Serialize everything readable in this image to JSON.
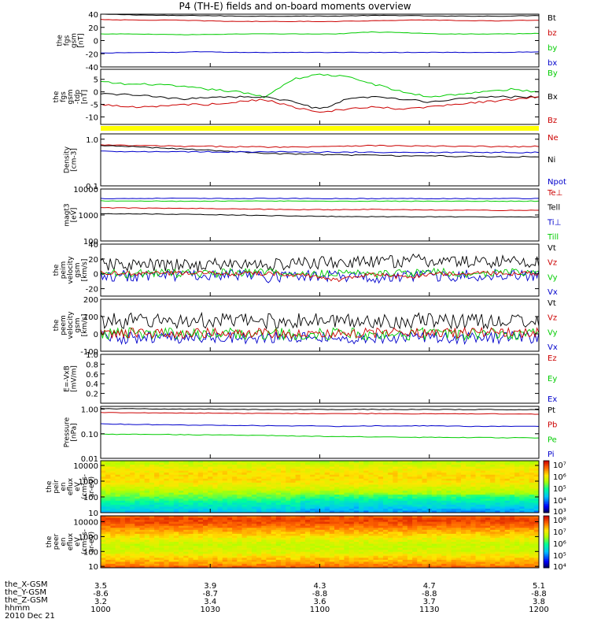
{
  "chart_data": {
    "title": "P4 (TH-E) fields and on-board moments overview",
    "footer": {
      "date": "2010 Dec 21",
      "rows": [
        {
          "label": "the_X-GSM",
          "values": [
            "3.5",
            "3.9",
            "4.3",
            "4.7",
            "5.1"
          ]
        },
        {
          "label": "the_Y-GSM",
          "values": [
            "-8.6",
            "-8.7",
            "-8.8",
            "-8.8",
            "-8.8"
          ]
        },
        {
          "label": "the_Z-GSM",
          "values": [
            "3.2",
            "3.4",
            "3.6",
            "3.7",
            "3.8"
          ]
        },
        {
          "label": "hhmm",
          "values": [
            "1000",
            "1030",
            "1100",
            "1130",
            "1200"
          ]
        }
      ]
    },
    "panels": [
      {
        "type": "line",
        "ylabel": [
          "the",
          "fgs",
          "gsm",
          "[nT]"
        ],
        "ylim": [
          -40,
          40
        ],
        "yticks": [
          "40",
          "20",
          "0",
          "-20",
          "-40"
        ],
        "legend": [
          {
            "text": "Bt",
            "color": "#000000"
          },
          {
            "text": "bz",
            "color": "#cc0000"
          },
          {
            "text": "by",
            "color": "#00cc00"
          },
          {
            "text": "bx",
            "color": "#0000cc"
          }
        ],
        "series": [
          {
            "color": "#000000",
            "values": [
              40,
              39,
              38,
              38,
              37,
              37,
              37,
              37,
              38,
              38,
              37,
              37,
              37,
              38
            ]
          },
          {
            "color": "#cc0000",
            "values": [
              32,
              31,
              31,
              30,
              29,
              29,
              29,
              29,
              30,
              31,
              31,
              30,
              30,
              31
            ]
          },
          {
            "color": "#00cc00",
            "values": [
              10,
              10,
              9,
              9,
              10,
              10,
              10,
              10,
              13,
              12,
              10,
              10,
              10,
              11
            ]
          },
          {
            "color": "#0000cc",
            "values": [
              -19,
              -18,
              -18,
              -17,
              -18,
              -18,
              -18,
              -18,
              -18,
              -18,
              -18,
              -18,
              -18,
              -17
            ]
          }
        ]
      },
      {
        "type": "line",
        "ylabel": [
          "the",
          "fgs",
          "gsm",
          "-tdp",
          "[nT]"
        ],
        "ylim": [
          -13,
          9
        ],
        "yticks": [
          "5",
          "0",
          "-5",
          "-10"
        ],
        "legend": [
          {
            "text": "By",
            "color": "#00cc00"
          },
          {
            "text": "Bx",
            "color": "#000000"
          },
          {
            "text": "Bz",
            "color": "#cc0000"
          }
        ],
        "series": [
          {
            "color": "#00cc00",
            "values": [
              4,
              3,
              3,
              2,
              1,
              0,
              -2,
              5,
              7,
              6,
              3,
              0,
              -2,
              -1,
              0,
              1,
              0
            ]
          },
          {
            "color": "#000000",
            "values": [
              -1,
              -1,
              -2,
              -3,
              -2,
              -2,
              -2,
              -4,
              -7,
              -3,
              -2,
              -3,
              -4,
              -3,
              -2,
              -2,
              -2
            ]
          },
          {
            "color": "#cc0000",
            "values": [
              -5,
              -6,
              -6,
              -5,
              -5,
              -4,
              -3,
              -6,
              -8,
              -7,
              -6,
              -7,
              -6,
              -5,
              -4,
              -3,
              -2
            ]
          }
        ]
      },
      {
        "type": "flag_bar",
        "color": "#ffff00"
      },
      {
        "type": "line",
        "log": true,
        "ylabel": [
          "Density",
          "[cm-3]"
        ],
        "ylim": [
          0.1,
          1.3
        ],
        "yticks": [
          "1.0",
          "0.1"
        ],
        "ytick_values": [
          1.0,
          0.1
        ],
        "legend": [
          {
            "text": "Ne",
            "color": "#cc0000"
          },
          {
            "text": "Ni",
            "color": "#000000"
          },
          {
            "text": "Npot",
            "color": "#0000cc"
          }
        ],
        "series": [
          {
            "color": "#cc0000",
            "values": [
              0.75,
              0.73,
              0.72,
              0.7,
              0.7,
              0.69,
              0.68,
              0.68,
              0.7,
              0.72,
              0.73,
              0.72,
              0.71,
              0.7,
              0.7,
              0.69,
              0.7
            ]
          },
          {
            "color": "#000000",
            "values": [
              0.72,
              0.7,
              0.66,
              0.62,
              0.58,
              0.54,
              0.5,
              0.48,
              0.47,
              0.46,
              0.45,
              0.44,
              0.44,
              0.43,
              0.43,
              0.42,
              0.42
            ]
          },
          {
            "color": "#0000cc",
            "values": [
              0.55,
              0.55,
              0.54,
              0.54,
              0.54,
              0.53,
              0.53,
              0.53,
              0.53,
              0.53,
              0.52,
              0.52,
              0.52,
              0.52,
              0.52,
              0.52,
              0.52
            ]
          }
        ]
      },
      {
        "type": "line",
        "log": true,
        "ylabel": [
          "magt3",
          "[eV]"
        ],
        "ylim": [
          100,
          10000
        ],
        "yticks": [
          "10000",
          "1000",
          "100"
        ],
        "ytick_values": [
          10000,
          1000,
          100
        ],
        "legend": [
          {
            "text": "Te⊥",
            "color": "#cc0000"
          },
          {
            "text": "Tell",
            "color": "#000000"
          },
          {
            "text": "Ti⊥",
            "color": "#0000cc"
          },
          {
            "text": "Till",
            "color": "#00cc00"
          }
        ],
        "series": [
          {
            "color": "#0000cc",
            "values": [
              4300,
              4300,
              4400,
              4300,
              4300,
              4350,
              4300,
              4300,
              4250,
              4300,
              4300,
              4250,
              4300,
              4300
            ]
          },
          {
            "color": "#00cc00",
            "values": [
              3500,
              3500,
              3400,
              3400,
              3400,
              3450,
              3400,
              3400,
              3400,
              3400,
              3400,
              3400,
              3400,
              3400
            ]
          },
          {
            "color": "#cc0000",
            "values": [
              1900,
              1850,
              1800,
              1800,
              1700,
              1650,
              1600,
              1600,
              1650,
              1600,
              1550,
              1550,
              1500,
              1500
            ]
          },
          {
            "color": "#000000",
            "values": [
              1100,
              1100,
              1080,
              1050,
              1000,
              950,
              900,
              880,
              860,
              850,
              850,
              840,
              830,
              830
            ]
          }
        ]
      },
      {
        "type": "line",
        "noisy": true,
        "ylabel": [
          "the",
          "peim",
          "velocity",
          "gsm",
          "[km/s]"
        ],
        "ylim": [
          -30,
          40
        ],
        "yticks": [
          "40",
          "20",
          "0",
          "-20"
        ],
        "legend": [
          {
            "text": "Vt",
            "color": "#000000"
          },
          {
            "text": "Vz",
            "color": "#cc0000"
          },
          {
            "text": "Vy",
            "color": "#00cc00"
          },
          {
            "text": "Vx",
            "color": "#0000cc"
          }
        ],
        "series": [
          {
            "color": "#000000",
            "values": [
              12,
              12,
              11,
              12,
              13,
              12,
              14,
              16,
              15,
              18,
              17,
              16,
              17,
              16
            ],
            "noise": 9
          },
          {
            "color": "#0000cc",
            "values": [
              -2,
              -3,
              -2,
              -3,
              -2,
              -4,
              -3,
              -2,
              -5,
              -2,
              -3,
              -2,
              -1,
              -2
            ],
            "noise": 8
          },
          {
            "color": "#00cc00",
            "values": [
              1,
              0,
              1,
              0,
              2,
              1,
              0,
              1,
              0,
              1,
              2,
              1,
              2,
              1
            ],
            "noise": 6
          },
          {
            "color": "#cc0000",
            "values": [
              2,
              0,
              1,
              2,
              0,
              1,
              -2,
              -8,
              0,
              -5,
              0,
              1,
              0,
              1
            ],
            "noise": 3
          }
        ]
      },
      {
        "type": "line",
        "noisy": true,
        "ylabel": [
          "the",
          "peem",
          "velocity",
          "gsm",
          "[km/s]"
        ],
        "ylim": [
          -100,
          200
        ],
        "yticks": [
          "200",
          "100",
          "0",
          "-100"
        ],
        "legend": [
          {
            "text": "Vt",
            "color": "#000000"
          },
          {
            "text": "Vz",
            "color": "#cc0000"
          },
          {
            "text": "Vy",
            "color": "#00cc00"
          },
          {
            "text": "Vx",
            "color": "#0000cc"
          }
        ],
        "series": [
          {
            "color": "#000000",
            "values": [
              75,
              75,
              75,
              75,
              75,
              75,
              75,
              75,
              75,
              75,
              75,
              75,
              75,
              75
            ],
            "noise": 45
          },
          {
            "color": "#0000cc",
            "values": [
              -20,
              -25,
              -20,
              -25,
              -20,
              -25,
              -20,
              -25,
              -20,
              -25,
              -20,
              -25,
              -20,
              -25
            ],
            "noise": 35
          },
          {
            "color": "#00cc00",
            "values": [
              0,
              0,
              0,
              0,
              0,
              0,
              0,
              0,
              0,
              0,
              0,
              0,
              0,
              0
            ],
            "noise": 35
          },
          {
            "color": "#cc0000",
            "values": [
              5,
              5,
              5,
              5,
              5,
              5,
              5,
              5,
              5,
              5,
              5,
              5,
              5,
              5
            ],
            "noise": 30
          }
        ]
      },
      {
        "type": "empty",
        "ylabel": [
          "E=-VxB",
          "[mV/m]"
        ],
        "ylim": [
          0,
          1
        ],
        "yticks": [
          "1.0",
          "0.8",
          "0.6",
          "0.4",
          "0.2"
        ],
        "legend": [
          {
            "text": "Ez",
            "color": "#cc0000"
          },
          {
            "text": "Ey",
            "color": "#00cc00"
          },
          {
            "text": "Ex",
            "color": "#0000cc"
          }
        ]
      },
      {
        "type": "line",
        "log": true,
        "ylabel": [
          "Pressure",
          "[nPa]"
        ],
        "ylim": [
          0.01,
          1.3
        ],
        "yticks": [
          "1.00",
          "0.10",
          "0.01"
        ],
        "ytick_values": [
          1,
          0.1,
          0.01
        ],
        "legend": [
          {
            "text": "Pt",
            "color": "#000000"
          },
          {
            "text": "Pb",
            "color": "#cc0000"
          },
          {
            "text": "Pe",
            "color": "#00cc00"
          },
          {
            "text": "Pi",
            "color": "#0000cc"
          }
        ],
        "series": [
          {
            "color": "#000000",
            "values": [
              1.05,
              1.03,
              1.0,
              1.0,
              0.98,
              0.97,
              0.97,
              0.97,
              0.98,
              0.97,
              0.97,
              0.96,
              0.96,
              0.95
            ]
          },
          {
            "color": "#cc0000",
            "values": [
              0.72,
              0.71,
              0.7,
              0.69,
              0.68,
              0.67,
              0.66,
              0.66,
              0.66,
              0.65,
              0.65,
              0.64,
              0.64,
              0.63
            ]
          },
          {
            "color": "#0000cc",
            "values": [
              0.25,
              0.24,
              0.23,
              0.22,
              0.22,
              0.21,
              0.21,
              0.2,
              0.21,
              0.21,
              0.21,
              0.2,
              0.2,
              0.2
            ]
          },
          {
            "color": "#00cc00",
            "values": [
              0.095,
              0.094,
              0.093,
              0.09,
              0.088,
              0.085,
              0.08,
              0.077,
              0.075,
              0.072,
              0.071,
              0.07,
              0.069,
              0.068
            ]
          }
        ]
      },
      {
        "type": "heatmap",
        "log": true,
        "ylabel": [
          "the",
          "peir",
          "en",
          "eflux",
          "eV",
          "(cm²-s-",
          "sr-eV)"
        ],
        "ylim": [
          10,
          20000
        ],
        "yticks": [
          "10000",
          "1000",
          "100",
          "10"
        ],
        "ytick_values": [
          10000,
          1000,
          100,
          10
        ],
        "colorbar": {
          "labels": [
            "10⁷",
            "10⁶",
            "10⁵",
            "10⁴",
            "10³"
          ],
          "log_range": [
            2.8,
            7.5
          ]
        },
        "profile": [
          [
            10,
            4.2
          ],
          [
            20,
            4.5
          ],
          [
            50,
            4.9
          ],
          [
            100,
            5.3
          ],
          [
            300,
            5.8
          ],
          [
            1000,
            6.2
          ],
          [
            3000,
            6.2
          ],
          [
            8000,
            6.0
          ],
          [
            20000,
            5.6
          ]
        ]
      },
      {
        "type": "heatmap",
        "log": true,
        "ylabel": [
          "the",
          "peer",
          "en",
          "eflux",
          "eV",
          "(cm²-s-",
          "sr-eV)"
        ],
        "ylim": [
          8,
          25000
        ],
        "yticks": [
          "10000",
          "1000",
          "100",
          "10"
        ],
        "ytick_values": [
          10000,
          1000,
          100,
          10
        ],
        "colorbar": {
          "labels": [
            "10⁸",
            "10⁷",
            "10⁶",
            "10⁵",
            "10⁴"
          ],
          "log_range": [
            3.7,
            8.3
          ]
        },
        "profile": [
          [
            8,
            7.8
          ],
          [
            12,
            7.5
          ],
          [
            20,
            7.3
          ],
          [
            50,
            7.0
          ],
          [
            100,
            6.7
          ],
          [
            300,
            6.6
          ],
          [
            1000,
            7.0
          ],
          [
            3000,
            7.4
          ],
          [
            8000,
            7.8
          ],
          [
            15000,
            7.9
          ],
          [
            25000,
            7.6
          ]
        ]
      }
    ]
  },
  "colors": {
    "bz": "#cc0000",
    "by": "#00cc00",
    "bx": "#0000cc",
    "bt": "#000000",
    "flag": "#ffff00"
  }
}
